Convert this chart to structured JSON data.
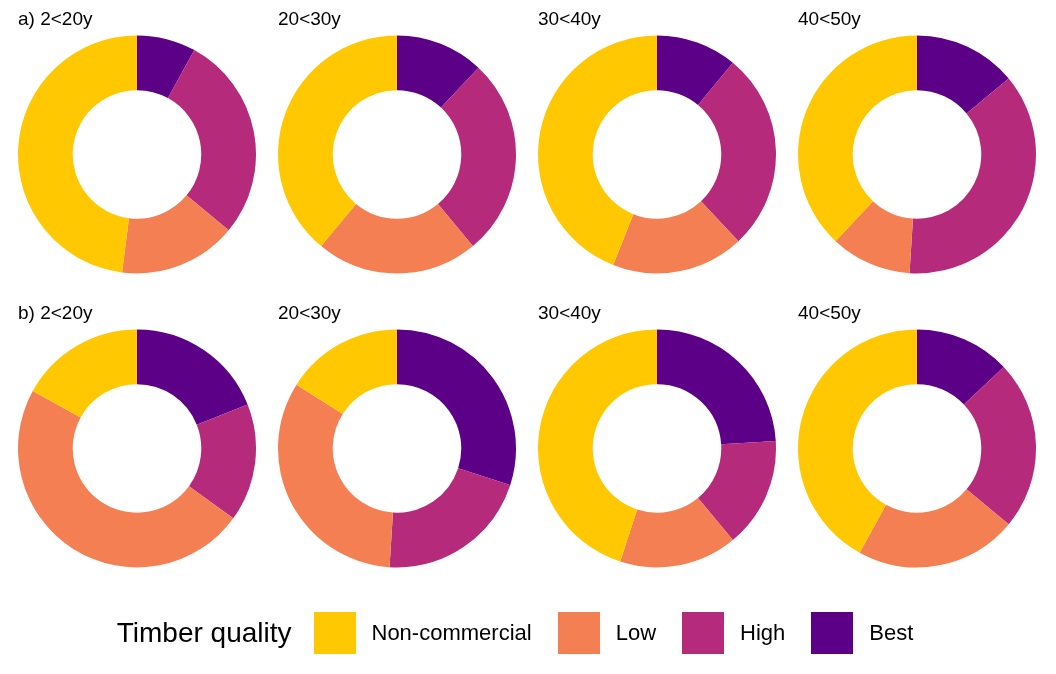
{
  "chart_data": [
    {
      "type": "donut",
      "title": "a) 2<20y",
      "categories": [
        "Best",
        "High",
        "Low",
        "Non-commercial"
      ],
      "values": [
        8,
        28,
        16,
        48
      ],
      "colors": [
        "#5c0087",
        "#b62a7c",
        "#f47f52",
        "#ffc800"
      ],
      "legend": "bottom",
      "legend_title": "Timber quality"
    },
    {
      "type": "donut",
      "title": "20<30y",
      "categories": [
        null,
        null,
        null,
        null
      ],
      "values": [
        12,
        27,
        22,
        39
      ],
      "colors": [
        "#5c0087",
        "#b62a7c",
        "#f47f52",
        "#ffc800"
      ]
    },
    {
      "type": "donut",
      "title": "30<40y",
      "categories": [
        null,
        null,
        null,
        null
      ],
      "values": [
        11,
        27,
        18,
        44
      ],
      "colors": [
        "#5c0087",
        "#b62a7c",
        "#f47f52",
        "#ffc800"
      ]
    },
    {
      "type": "donut",
      "title": "40<50y",
      "categories": [
        null,
        null,
        null,
        null
      ],
      "values": [
        14,
        37,
        11,
        38
      ],
      "colors": [
        "#5c0087",
        "#b62a7c",
        "#f47f52",
        "#ffc800"
      ]
    },
    {
      "type": "donut",
      "title": "b) 2<20y",
      "categories": [
        null,
        null,
        null,
        null
      ],
      "values": [
        19,
        16,
        48,
        17
      ],
      "colors": [
        "#5c0087",
        "#b62a7c",
        "#f47f52",
        "#ffc800"
      ]
    },
    {
      "type": "donut",
      "title": "20<30y",
      "categories": [
        null,
        null,
        null,
        null
      ],
      "values": [
        30,
        21,
        33,
        16
      ],
      "colors": [
        "#5c0087",
        "#b62a7c",
        "#f47f52",
        "#ffc800"
      ]
    },
    {
      "type": "donut",
      "title": "30<40y",
      "categories": [
        null,
        null,
        null,
        null
      ],
      "values": [
        24,
        15,
        16,
        45
      ],
      "colors": [
        "#5c0087",
        "#b62a7c",
        "#f47f52",
        "#ffc800"
      ]
    },
    {
      "type": "donut",
      "title": "40<50y",
      "categories": [
        null,
        null,
        null,
        null
      ],
      "values": [
        13,
        23,
        22,
        42
      ],
      "colors": [
        "#5c0087",
        "#b62a7c",
        "#f47f52",
        "#ffc800"
      ]
    }
  ]
}
